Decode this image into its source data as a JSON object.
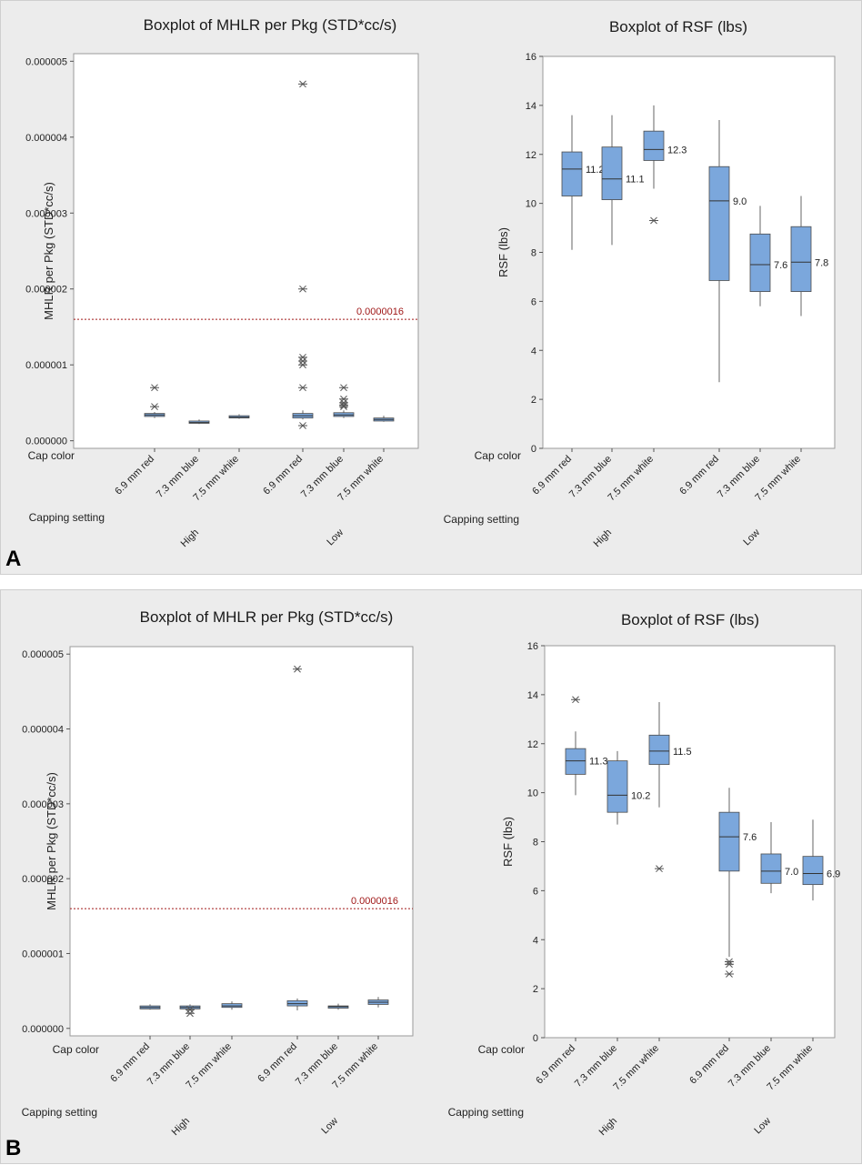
{
  "panels": [
    {
      "label": "A",
      "charts": [
        {
          "type": "boxplot",
          "title": "Boxplot of MHLR per Pkg (STD*cc/s)",
          "ylabel": "MHLR per Pkg (STD*cc/s)",
          "ylim": [
            -1e-07,
            5.1e-06
          ],
          "yticks": [
            0.0,
            1e-06,
            2e-06,
            3e-06,
            4e-06,
            5e-06
          ],
          "ytick_labels": [
            "0.000000",
            "0.000001",
            "0.000002",
            "0.000003",
            "0.000004",
            "0.000005"
          ],
          "x_factor_labels": {
            "inner": "Cap color",
            "outer": "Capping setting"
          },
          "groups": [
            {
              "name": "High",
              "categories": [
                "6.9 mm red",
                "7.3 mm blue",
                "7.5 mm white"
              ]
            },
            {
              "name": "Low",
              "categories": [
                "6.9 mm red",
                "7.3 mm blue",
                "7.5 mm white"
              ]
            }
          ],
          "reference_line": {
            "value": 1.6e-06,
            "label": "0.0000016",
            "color": "#a01818"
          },
          "boxes": [
            {
              "q1": 3.2e-07,
              "median": 3.4e-07,
              "q3": 3.6e-07,
              "wmin": 3e-07,
              "wmax": 3.8e-07,
              "outliers": [
                7e-07,
                4.5e-07
              ],
              "label": ""
            },
            {
              "q1": 2.3e-07,
              "median": 2.4e-07,
              "q3": 2.6e-07,
              "wmin": 2.2e-07,
              "wmax": 2.8e-07,
              "outliers": [],
              "label": ""
            },
            {
              "q1": 3e-07,
              "median": 3.1e-07,
              "q3": 3.3e-07,
              "wmin": 2.9e-07,
              "wmax": 3.5e-07,
              "outliers": [],
              "label": ""
            },
            {
              "q1": 3e-07,
              "median": 3.3e-07,
              "q3": 3.6e-07,
              "wmin": 2.8e-07,
              "wmax": 4e-07,
              "outliers": [
                4.7e-06,
                2e-06,
                1.1e-06,
                1.05e-06,
                1e-06,
                7e-07,
                2e-07
              ],
              "label": ""
            },
            {
              "q1": 3.2e-07,
              "median": 3.4e-07,
              "q3": 3.7e-07,
              "wmin": 3e-07,
              "wmax": 4e-07,
              "outliers": [
                7e-07,
                5.5e-07,
                5e-07,
                4.7e-07,
                4.5e-07
              ],
              "label": ""
            },
            {
              "q1": 2.6e-07,
              "median": 2.8e-07,
              "q3": 3e-07,
              "wmin": 2.5e-07,
              "wmax": 3.3e-07,
              "outliers": [],
              "label": ""
            }
          ]
        },
        {
          "type": "boxplot",
          "title": "Boxplot of RSF (lbs)",
          "ylabel": "RSF (lbs)",
          "ylim": [
            0,
            16
          ],
          "yticks": [
            0,
            2,
            4,
            6,
            8,
            10,
            12,
            14,
            16
          ],
          "ytick_labels": [
            "0",
            "2",
            "4",
            "6",
            "8",
            "10",
            "12",
            "14",
            "16"
          ],
          "x_factor_labels": {
            "inner": "Cap color",
            "outer": "Capping setting"
          },
          "groups": [
            {
              "name": "High",
              "categories": [
                "6.9 mm red",
                "7.3 mm blue",
                "7.5 mm white"
              ]
            },
            {
              "name": "Low",
              "categories": [
                "6.9 mm red",
                "7.3 mm blue",
                "7.5 mm white"
              ]
            }
          ],
          "reference_line": null,
          "boxes": [
            {
              "q1": 10.3,
              "median": 11.4,
              "q3": 12.1,
              "wmin": 8.1,
              "wmax": 13.6,
              "outliers": [],
              "label": "11.2"
            },
            {
              "q1": 10.15,
              "median": 11.0,
              "q3": 12.3,
              "wmin": 8.3,
              "wmax": 13.6,
              "outliers": [],
              "label": "11.1"
            },
            {
              "q1": 11.75,
              "median": 12.2,
              "q3": 12.95,
              "wmin": 10.6,
              "wmax": 14.0,
              "outliers": [
                9.3
              ],
              "label": "12.3"
            },
            {
              "q1": 6.85,
              "median": 10.1,
              "q3": 11.5,
              "wmin": 2.7,
              "wmax": 13.4,
              "outliers": [],
              "label": "9.0"
            },
            {
              "q1": 6.4,
              "median": 7.5,
              "q3": 8.75,
              "wmin": 5.8,
              "wmax": 9.9,
              "outliers": [],
              "label": "7.6"
            },
            {
              "q1": 6.4,
              "median": 7.6,
              "q3": 9.05,
              "wmin": 5.4,
              "wmax": 10.3,
              "outliers": [],
              "label": "7.8"
            }
          ]
        }
      ]
    },
    {
      "label": "B",
      "charts": [
        {
          "type": "boxplot",
          "title": "Boxplot of MHLR per Pkg (STD*cc/s)",
          "ylabel": "MHLR per Pkg (STD*cc/s)",
          "ylim": [
            -1e-07,
            5.1e-06
          ],
          "yticks": [
            0.0,
            1e-06,
            2e-06,
            3e-06,
            4e-06,
            5e-06
          ],
          "ytick_labels": [
            "0.000000",
            "0.000001",
            "0.000002",
            "0.000003",
            "0.000004",
            "0.000005"
          ],
          "x_factor_labels": {
            "inner": "Cap color",
            "outer": "Capping setting"
          },
          "groups": [
            {
              "name": "High",
              "categories": [
                "6.9 mm red",
                "7.3 mm blue",
                "7.5 mm white"
              ]
            },
            {
              "name": "Low",
              "categories": [
                "6.9 mm red",
                "7.3 mm blue",
                "7.5 mm white"
              ]
            }
          ],
          "reference_line": {
            "value": 1.6e-06,
            "label": "0.0000016",
            "color": "#a01818"
          },
          "boxes": [
            {
              "q1": 2.6e-07,
              "median": 2.8e-07,
              "q3": 3e-07,
              "wmin": 2.5e-07,
              "wmax": 3.2e-07,
              "outliers": [],
              "label": ""
            },
            {
              "q1": 2.6e-07,
              "median": 2.8e-07,
              "q3": 3e-07,
              "wmin": 2.5e-07,
              "wmax": 3.2e-07,
              "outliers": [
                2.5e-07,
                2e-07
              ],
              "label": ""
            },
            {
              "q1": 2.8e-07,
              "median": 3e-07,
              "q3": 3.3e-07,
              "wmin": 2.5e-07,
              "wmax": 3.6e-07,
              "outliers": [],
              "label": ""
            },
            {
              "q1": 3e-07,
              "median": 3.3e-07,
              "q3": 3.7e-07,
              "wmin": 2.4e-07,
              "wmax": 4e-07,
              "outliers": [
                4.8e-06
              ],
              "label": ""
            },
            {
              "q1": 2.7e-07,
              "median": 2.9e-07,
              "q3": 3e-07,
              "wmin": 2.5e-07,
              "wmax": 3.3e-07,
              "outliers": [],
              "label": ""
            },
            {
              "q1": 3.2e-07,
              "median": 3.5e-07,
              "q3": 3.8e-07,
              "wmin": 2.8e-07,
              "wmax": 4.2e-07,
              "outliers": [],
              "label": ""
            }
          ]
        },
        {
          "type": "boxplot",
          "title": "Boxplot of RSF (lbs)",
          "ylabel": "RSF (lbs)",
          "ylim": [
            0,
            16
          ],
          "yticks": [
            0,
            2,
            4,
            6,
            8,
            10,
            12,
            14,
            16
          ],
          "ytick_labels": [
            "0",
            "2",
            "4",
            "6",
            "8",
            "10",
            "12",
            "14",
            "16"
          ],
          "x_factor_labels": {
            "inner": "Cap color",
            "outer": "Capping setting"
          },
          "groups": [
            {
              "name": "High",
              "categories": [
                "6.9 mm red",
                "7.3 mm blue",
                "7.5 mm white"
              ]
            },
            {
              "name": "Low",
              "categories": [
                "6.9 mm red",
                "7.3 mm blue",
                "7.5 mm white"
              ]
            }
          ],
          "reference_line": null,
          "boxes": [
            {
              "q1": 10.75,
              "median": 11.3,
              "q3": 11.8,
              "wmin": 9.9,
              "wmax": 12.5,
              "outliers": [
                13.8
              ],
              "label": "11.3"
            },
            {
              "q1": 9.2,
              "median": 9.9,
              "q3": 11.3,
              "wmin": 8.7,
              "wmax": 11.7,
              "outliers": [],
              "label": "10.2"
            },
            {
              "q1": 11.15,
              "median": 11.7,
              "q3": 12.35,
              "wmin": 9.4,
              "wmax": 13.7,
              "outliers": [
                6.9
              ],
              "label": "11.5"
            },
            {
              "q1": 6.8,
              "median": 8.2,
              "q3": 9.2,
              "wmin": 3.3,
              "wmax": 10.2,
              "outliers": [
                3.1,
                3.0,
                2.6
              ],
              "label": "7.6"
            },
            {
              "q1": 6.3,
              "median": 6.8,
              "q3": 7.5,
              "wmin": 5.9,
              "wmax": 8.8,
              "outliers": [],
              "label": "7.0"
            },
            {
              "q1": 6.25,
              "median": 6.7,
              "q3": 7.4,
              "wmin": 5.6,
              "wmax": 8.9,
              "outliers": [],
              "label": "6.9"
            }
          ]
        }
      ]
    }
  ],
  "colors": {
    "box_fill": "#7ba7dc",
    "box_stroke": "#4d4d4d",
    "plot_bg": "#ffffff",
    "panel_bg": "#ececec",
    "reference_line": "#a01818"
  },
  "chart_data": [
    {
      "type": "boxplot",
      "panel": "A",
      "title": "Boxplot of MHLR per Pkg (STD*cc/s)",
      "ylabel": "MHLR per Pkg (STD*cc/s)",
      "categories": [
        "High 6.9 mm red",
        "High 7.3 mm blue",
        "High 7.5 mm white",
        "Low 6.9 mm red",
        "Low 7.3 mm blue",
        "Low 7.5 mm white"
      ],
      "reference_line": 1.6e-06
    },
    {
      "type": "boxplot",
      "panel": "A",
      "title": "Boxplot of RSF (lbs)",
      "ylabel": "RSF (lbs)",
      "categories": [
        "High 6.9 mm red",
        "High 7.3 mm blue",
        "High 7.5 mm white",
        "Low 6.9 mm red",
        "Low 7.3 mm blue",
        "Low 7.5 mm white"
      ],
      "mean_labels": [
        11.2,
        11.1,
        12.3,
        9.0,
        7.6,
        7.8
      ]
    },
    {
      "type": "boxplot",
      "panel": "B",
      "title": "Boxplot of MHLR per Pkg (STD*cc/s)",
      "ylabel": "MHLR per Pkg (STD*cc/s)",
      "categories": [
        "High 6.9 mm red",
        "High 7.3 mm blue",
        "High 7.5 mm white",
        "Low 6.9 mm red",
        "Low 7.3 mm blue",
        "Low 7.5 mm white"
      ],
      "reference_line": 1.6e-06
    },
    {
      "type": "boxplot",
      "panel": "B",
      "title": "Boxplot of RSF (lbs)",
      "ylabel": "RSF (lbs)",
      "categories": [
        "High 6.9 mm red",
        "High 7.3 mm blue",
        "High 7.5 mm white",
        "Low 6.9 mm red",
        "Low 7.3 mm blue",
        "Low 7.5 mm white"
      ],
      "mean_labels": [
        11.3,
        10.2,
        11.5,
        7.6,
        7.0,
        6.9
      ]
    }
  ]
}
